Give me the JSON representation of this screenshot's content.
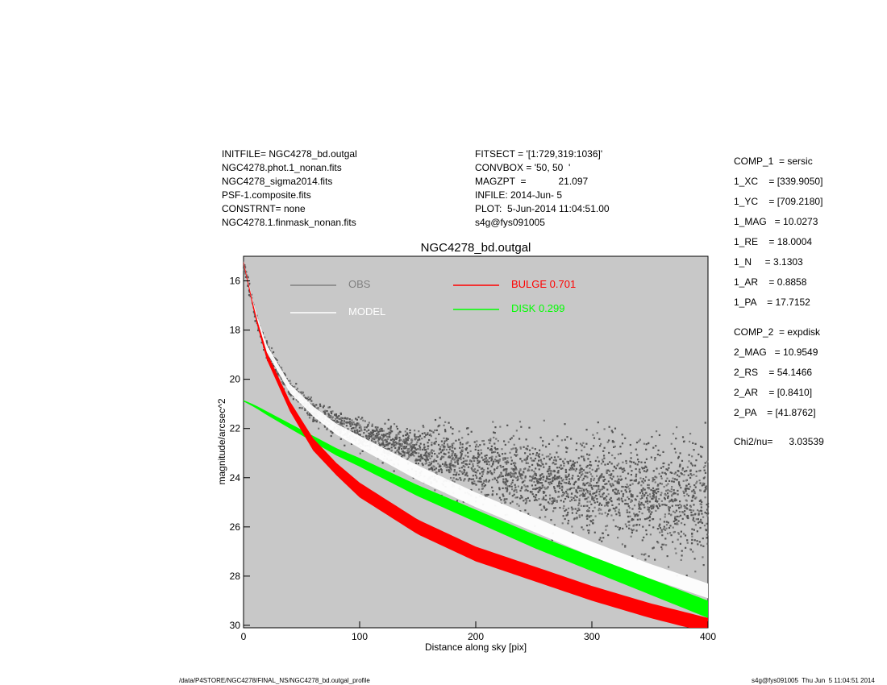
{
  "header_left": [
    "INITFILE= NGC4278_bd.outgal",
    "NGC4278.phot.1_nonan.fits",
    "NGC4278_sigma2014.fits",
    "PSF-1.composite.fits",
    "CONSTRNT= none",
    "NGC4278.1.finmask_nonan.fits"
  ],
  "header_mid": [
    "FITSECT = '[1:729,319:1036]'",
    "CONVBOX = '50, 50  '",
    "MAGZPT  =            21.097",
    "INFILE: 2014-Jun- 5",
    "PLOT:  5-Jun-2014 11:04:51.00",
    "s4g@fys091005"
  ],
  "params": [
    "COMP_1  = sersic",
    "1_XC    = [339.9050]",
    "1_YC    = [709.2180]",
    "1_MAG   = 10.0273",
    "1_RE    = 18.0004",
    "1_N     = 3.1303",
    "1_AR    = 0.8858",
    "1_PA    = 17.7152",
    "COMP_2  = expdisk",
    "2_MAG   = 10.9549",
    "2_RS    = 54.1466",
    "2_AR    = [0.8410]",
    "2_PA    = [41.8762]",
    "Chi2/nu=      3.03539"
  ],
  "footer_left": "/data/P4STORE/NGC4278/FINAL_NS/NGC4278_bd.outgal_profile",
  "footer_right": "s4g@fys091005  Thu Jun  5 11:04:51 2014",
  "chart_data": {
    "type": "scatter",
    "title": "NGC4278_bd.outgal",
    "xlabel": "Distance along sky [pix]",
    "ylabel": "magnitude/arcsec^2",
    "xlim": [
      0,
      400
    ],
    "ylim": [
      30.1,
      15.0
    ],
    "y_inverted": true,
    "xticks": [
      0,
      100,
      200,
      300,
      400
    ],
    "yticks": [
      16,
      18,
      20,
      22,
      24,
      26,
      28,
      30
    ],
    "background": "#c8c8c8",
    "legend": [
      {
        "label": "OBS",
        "color": "#808080"
      },
      {
        "label": "MODEL",
        "color": "#ffffff"
      },
      {
        "label": "BULGE  0.701",
        "color": "#ff0000"
      },
      {
        "label": "DISK  0.299",
        "color": "#00ff00"
      }
    ],
    "x": [
      0,
      10,
      20,
      40,
      60,
      80,
      100,
      150,
      200,
      250,
      300,
      350,
      400
    ],
    "series": [
      {
        "name": "BULGE",
        "color": "#ff0000",
        "values": [
          15.2,
          17.3,
          18.9,
          20.9,
          22.4,
          23.4,
          24.2,
          25.7,
          26.8,
          27.6,
          28.4,
          29.1,
          29.7
        ],
        "band_width": [
          0.1,
          0.2,
          0.3,
          0.4,
          0.5,
          0.5,
          0.6,
          0.6,
          0.6,
          0.6,
          0.6,
          0.6,
          0.6
        ]
      },
      {
        "name": "DISK",
        "color": "#00ff00",
        "values": [
          20.85,
          21.05,
          21.3,
          21.8,
          22.3,
          22.8,
          23.2,
          24.3,
          25.3,
          26.3,
          27.2,
          28.1,
          29.0
        ],
        "band_width": [
          0.05,
          0.1,
          0.15,
          0.2,
          0.25,
          0.3,
          0.35,
          0.45,
          0.5,
          0.55,
          0.6,
          0.65,
          0.7
        ]
      },
      {
        "name": "MODEL",
        "color": "#ffffff",
        "values": [
          15.2,
          17.2,
          18.6,
          20.2,
          21.1,
          21.8,
          22.3,
          23.5,
          24.6,
          25.6,
          26.6,
          27.5,
          28.3
        ],
        "band_width": [
          0.1,
          0.2,
          0.3,
          0.35,
          0.4,
          0.45,
          0.5,
          0.6,
          0.6,
          0.6,
          0.6,
          0.6,
          0.6
        ]
      },
      {
        "name": "OBS",
        "color": "#555555",
        "values": [
          15.3,
          17.4,
          18.8,
          20.4,
          21.3,
          21.8,
          22.2,
          22.9,
          23.6,
          24.0,
          24.4,
          24.7,
          25.0
        ]
      }
    ]
  }
}
